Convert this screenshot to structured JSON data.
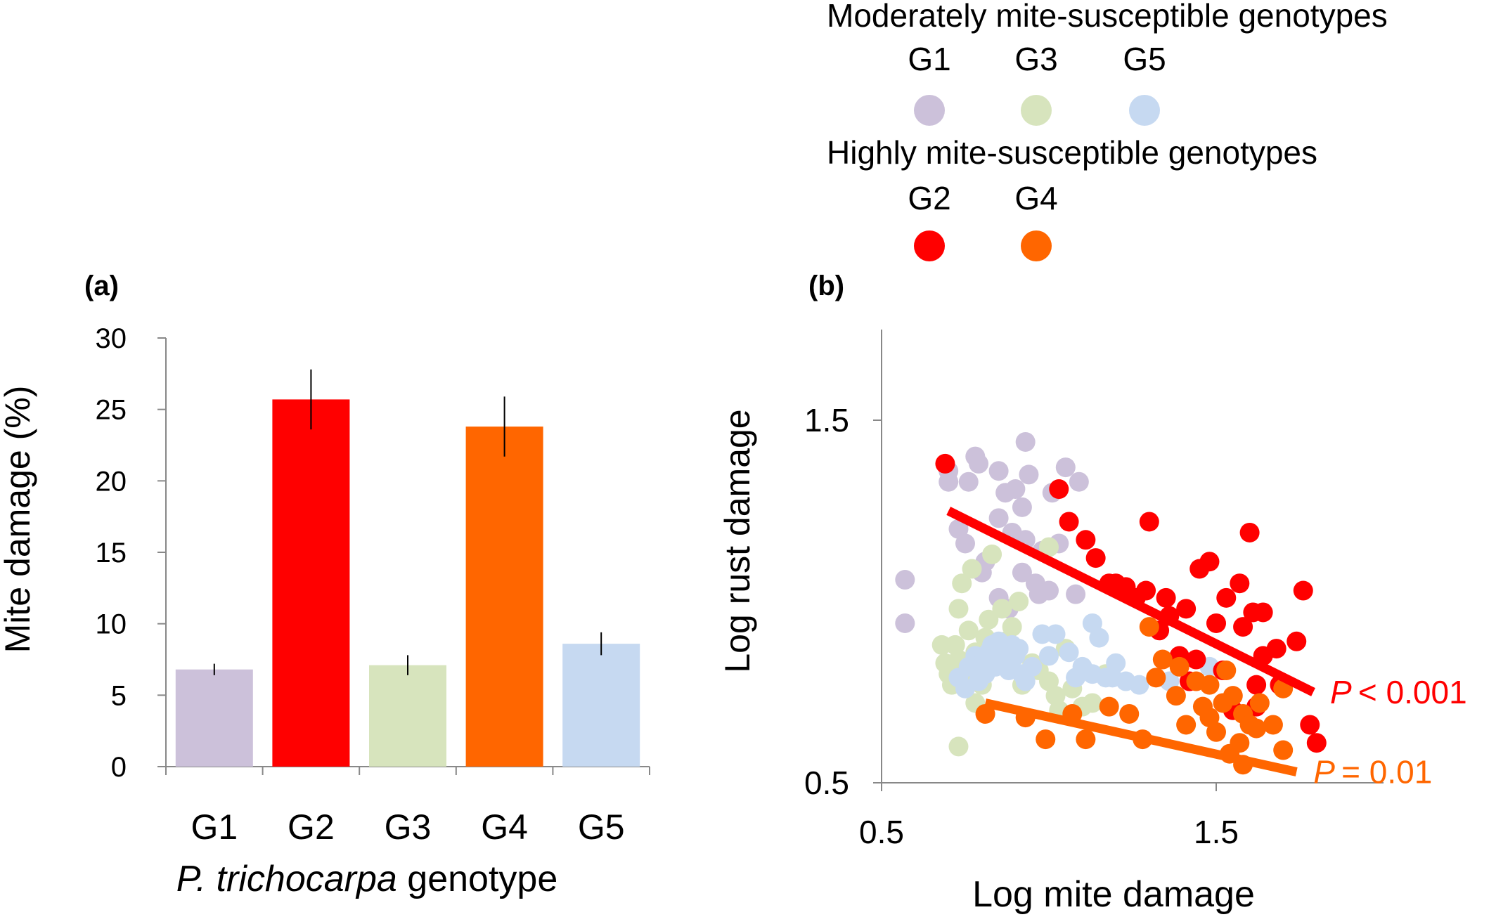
{
  "chart_data": [
    {
      "panel_label": "(a)",
      "type": "bar",
      "categories": [
        "G1",
        "G2",
        "G3",
        "G4",
        "G5"
      ],
      "values": [
        6.8,
        25.7,
        7.1,
        23.8,
        8.6
      ],
      "errors": [
        0.4,
        2.1,
        0.7,
        2.1,
        0.8
      ],
      "colors": [
        "#ccc1da",
        "#ff0000",
        "#d7e4bd",
        "#ff6600",
        "#c6d9f1"
      ],
      "xlabel_italic": "P. trichocarpa",
      "xlabel_rest": " genotype",
      "ylabel": "Mite damage (%)",
      "ylim": [
        0,
        30
      ],
      "yticks": [
        "0",
        "5",
        "10",
        "15",
        "20",
        "25",
        "30"
      ],
      "grid": false
    },
    {
      "panel_label": "(b)",
      "type": "scatter",
      "xlabel": "Log mite damage",
      "ylabel": "Log rust damage",
      "xlim": [
        0.5,
        2.0
      ],
      "ylim": [
        0.5,
        1.75
      ],
      "xticks": [
        "0.5",
        "1.5"
      ],
      "yticks": [
        "0.5",
        "1.5"
      ],
      "grid": false,
      "legend": {
        "position": "top",
        "groups": [
          {
            "title": "Moderately mite-susceptible genotypes",
            "entries": [
              "G1",
              "G3",
              "G5"
            ]
          },
          {
            "title": "Highly mite-susceptible genotypes",
            "entries": [
              "G2",
              "G4"
            ]
          }
        ]
      },
      "series": [
        {
          "name": "G1",
          "color": "#ccc1da",
          "points": [
            [
              0.57,
              1.06
            ],
            [
              0.57,
              0.94
            ],
            [
              0.7,
              1.36
            ],
            [
              0.7,
              1.33
            ],
            [
              0.73,
              1.2
            ],
            [
              0.75,
              1.16
            ],
            [
              0.76,
              1.33
            ],
            [
              0.78,
              1.4
            ],
            [
              0.79,
              1.38
            ],
            [
              0.8,
              1.08
            ],
            [
              0.81,
              1.11
            ],
            [
              0.85,
              1.36
            ],
            [
              0.85,
              1.23
            ],
            [
              0.87,
              1.3
            ],
            [
              0.89,
              1.19
            ],
            [
              0.9,
              1.31
            ],
            [
              0.92,
              1.26
            ],
            [
              0.93,
              1.17
            ],
            [
              0.94,
              1.35
            ],
            [
              0.96,
              1.05
            ],
            [
              0.98,
              1.14
            ],
            [
              1.01,
              1.3
            ],
            [
              1.03,
              1.16
            ],
            [
              1.05,
              1.37
            ],
            [
              1.08,
              1.02
            ],
            [
              1.09,
              1.33
            ],
            [
              0.93,
              1.44
            ],
            [
              0.97,
              1.02
            ],
            [
              1.0,
              1.03
            ],
            [
              0.85,
              1.01
            ],
            [
              0.88,
              0.98
            ],
            [
              0.92,
              1.08
            ]
          ]
        },
        {
          "name": "G3",
          "color": "#d7e4bd",
          "points": [
            [
              0.68,
              0.88
            ],
            [
              0.69,
              0.83
            ],
            [
              0.7,
              0.8
            ],
            [
              0.71,
              0.77
            ],
            [
              0.72,
              0.88
            ],
            [
              0.73,
              0.84
            ],
            [
              0.73,
              0.98
            ],
            [
              0.74,
              1.05
            ],
            [
              0.75,
              0.79
            ],
            [
              0.76,
              0.92
            ],
            [
              0.77,
              1.09
            ],
            [
              0.78,
              0.86
            ],
            [
              0.79,
              0.83
            ],
            [
              0.8,
              0.77
            ],
            [
              0.81,
              0.9
            ],
            [
              0.82,
              0.95
            ],
            [
              0.83,
              1.13
            ],
            [
              0.84,
              0.84
            ],
            [
              0.86,
              0.98
            ],
            [
              0.87,
              0.89
            ],
            [
              0.88,
              0.82
            ],
            [
              0.89,
              0.93
            ],
            [
              0.9,
              0.85
            ],
            [
              0.91,
              1.0
            ],
            [
              0.92,
              0.77
            ],
            [
              0.95,
              0.83
            ],
            [
              0.97,
              0.81
            ],
            [
              1.0,
              0.78
            ],
            [
              1.02,
              0.74
            ],
            [
              1.03,
              0.7
            ],
            [
              1.05,
              0.87
            ],
            [
              1.07,
              0.76
            ],
            [
              1.1,
              0.71
            ],
            [
              1.13,
              0.72
            ],
            [
              1.17,
              0.8
            ],
            [
              0.73,
              0.6
            ],
            [
              0.78,
              0.72
            ],
            [
              1.0,
              1.15
            ]
          ]
        },
        {
          "name": "G5",
          "color": "#c6d9f1",
          "points": [
            [
              0.73,
              0.79
            ],
            [
              0.75,
              0.76
            ],
            [
              0.76,
              0.82
            ],
            [
              0.78,
              0.85
            ],
            [
              0.79,
              0.78
            ],
            [
              0.8,
              0.83
            ],
            [
              0.81,
              0.8
            ],
            [
              0.82,
              0.86
            ],
            [
              0.83,
              0.88
            ],
            [
              0.84,
              0.82
            ],
            [
              0.85,
              0.89
            ],
            [
              0.86,
              0.84
            ],
            [
              0.87,
              0.87
            ],
            [
              0.88,
              0.81
            ],
            [
              0.89,
              0.88
            ],
            [
              0.9,
              0.85
            ],
            [
              0.91,
              0.87
            ],
            [
              0.92,
              0.8
            ],
            [
              0.93,
              0.78
            ],
            [
              0.95,
              0.82
            ],
            [
              0.98,
              0.91
            ],
            [
              1.0,
              0.85
            ],
            [
              1.02,
              0.91
            ],
            [
              1.06,
              0.86
            ],
            [
              1.08,
              0.79
            ],
            [
              1.1,
              0.82
            ],
            [
              1.13,
              0.94
            ],
            [
              1.15,
              0.9
            ],
            [
              1.17,
              0.79
            ],
            [
              1.2,
              0.83
            ],
            [
              1.23,
              0.78
            ],
            [
              1.27,
              0.77
            ],
            [
              1.36,
              0.78
            ],
            [
              1.48,
              0.82
            ],
            [
              1.13,
              0.8
            ],
            [
              1.19,
              0.79
            ]
          ]
        },
        {
          "name": "G2",
          "color": "#ff0000",
          "points": [
            [
              0.69,
              1.38
            ],
            [
              1.03,
              1.31
            ],
            [
              1.06,
              1.22
            ],
            [
              1.11,
              1.17
            ],
            [
              1.14,
              1.12
            ],
            [
              1.18,
              1.05
            ],
            [
              1.2,
              1.05
            ],
            [
              1.23,
              1.04
            ],
            [
              1.26,
              1.01
            ],
            [
              1.29,
              1.03
            ],
            [
              1.3,
              1.22
            ],
            [
              1.33,
              0.92
            ],
            [
              1.35,
              1.01
            ],
            [
              1.36,
              0.96
            ],
            [
              1.39,
              0.85
            ],
            [
              1.41,
              0.98
            ],
            [
              1.44,
              0.84
            ],
            [
              1.45,
              1.09
            ],
            [
              1.48,
              1.11
            ],
            [
              1.5,
              0.94
            ],
            [
              1.52,
              0.81
            ],
            [
              1.55,
              0.7
            ],
            [
              1.57,
              1.05
            ],
            [
              1.58,
              0.93
            ],
            [
              1.6,
              1.19
            ],
            [
              1.61,
              0.97
            ],
            [
              1.62,
              0.77
            ],
            [
              1.62,
              0.71
            ],
            [
              1.64,
              0.85
            ],
            [
              1.68,
              0.87
            ],
            [
              1.69,
              0.77
            ],
            [
              1.74,
              0.89
            ],
            [
              1.76,
              1.03
            ],
            [
              1.78,
              0.66
            ],
            [
              1.8,
              0.61
            ],
            [
              1.53,
              1.01
            ],
            [
              1.64,
              0.97
            ],
            [
              1.42,
              0.78
            ]
          ]
        },
        {
          "name": "G4",
          "color": "#ff6600",
          "points": [
            [
              0.81,
              0.69
            ],
            [
              0.93,
              0.68
            ],
            [
              0.99,
              0.62
            ],
            [
              1.07,
              0.69
            ],
            [
              1.11,
              0.62
            ],
            [
              1.18,
              0.71
            ],
            [
              1.24,
              0.69
            ],
            [
              1.28,
              0.62
            ],
            [
              1.3,
              0.93
            ],
            [
              1.32,
              0.79
            ],
            [
              1.34,
              0.84
            ],
            [
              1.38,
              0.74
            ],
            [
              1.39,
              0.82
            ],
            [
              1.41,
              0.66
            ],
            [
              1.44,
              0.78
            ],
            [
              1.46,
              0.71
            ],
            [
              1.48,
              0.77
            ],
            [
              1.5,
              0.64
            ],
            [
              1.52,
              0.72
            ],
            [
              1.53,
              0.81
            ],
            [
              1.54,
              0.58
            ],
            [
              1.55,
              0.74
            ],
            [
              1.57,
              0.61
            ],
            [
              1.58,
              0.69
            ],
            [
              1.6,
              0.66
            ],
            [
              1.62,
              0.65
            ],
            [
              1.63,
              0.72
            ],
            [
              1.67,
              0.66
            ],
            [
              1.7,
              0.59
            ],
            [
              1.7,
              0.76
            ],
            [
              1.58,
              0.55
            ],
            [
              1.48,
              0.68
            ]
          ]
        }
      ],
      "fit_lines": [
        {
          "name": "G2",
          "color": "#ff0000",
          "from": [
            0.7,
            1.25
          ],
          "to": [
            1.79,
            0.75
          ],
          "annotation": "P < 0.001"
        },
        {
          "name": "G4",
          "color": "#ff6600",
          "from": [
            0.81,
            0.72
          ],
          "to": [
            1.74,
            0.53
          ],
          "annotation": "P = 0.01"
        }
      ]
    }
  ]
}
